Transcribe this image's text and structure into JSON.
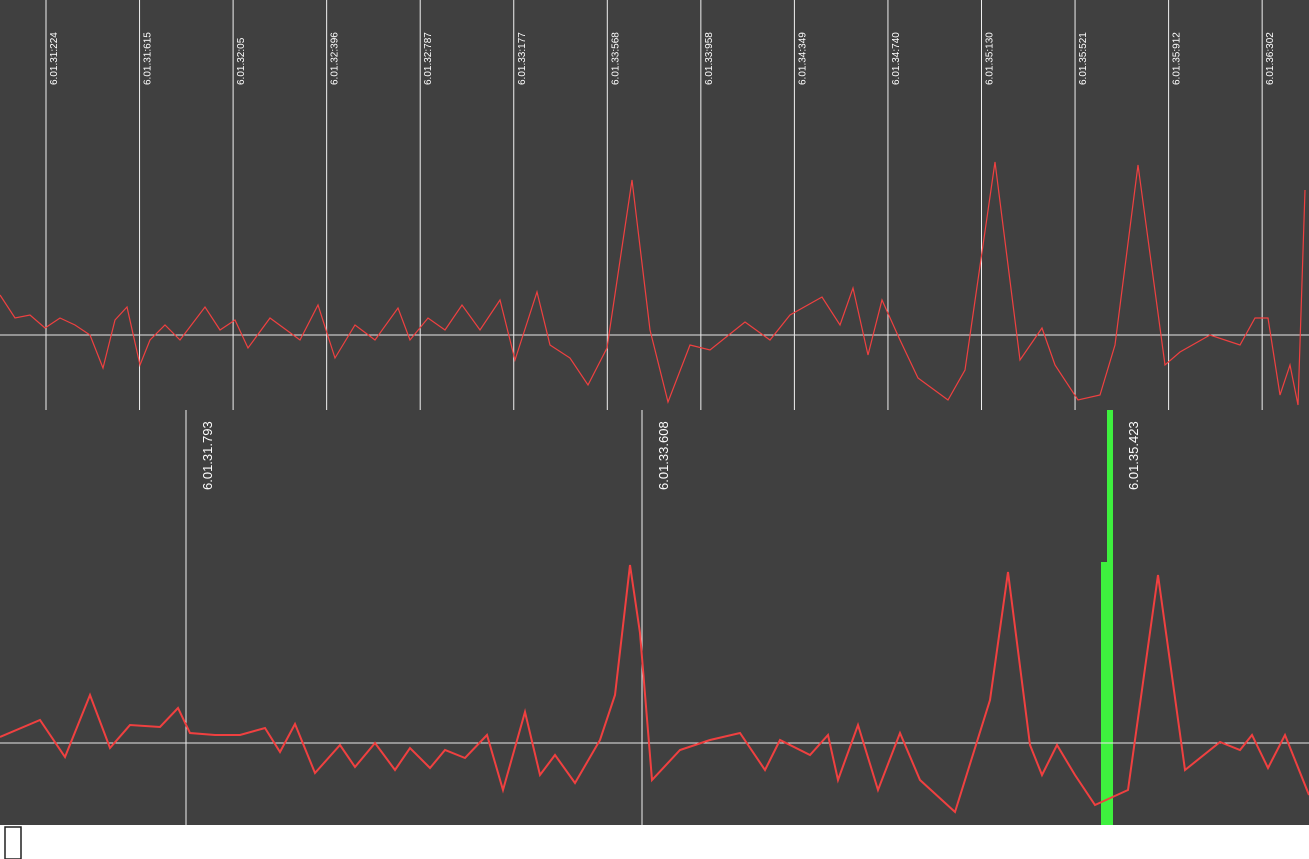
{
  "top_axis": {
    "labels": [
      "6.01.31:224",
      "6.01.31:615",
      "6.01.32:05",
      "6.01.32:396",
      "6.01.32:787",
      "6.01.33:177",
      "6.01.33:568",
      "6.01.33:958",
      "6.01.34:349",
      "6.01.34:740",
      "6.01.35:130",
      "6.01.35:521",
      "6.01.35:912",
      "6.01.36:302"
    ]
  },
  "bottom_markers": {
    "labels": [
      "6.01.31.793",
      "6.01.33.608",
      "6.01.35.423"
    ]
  }
}
